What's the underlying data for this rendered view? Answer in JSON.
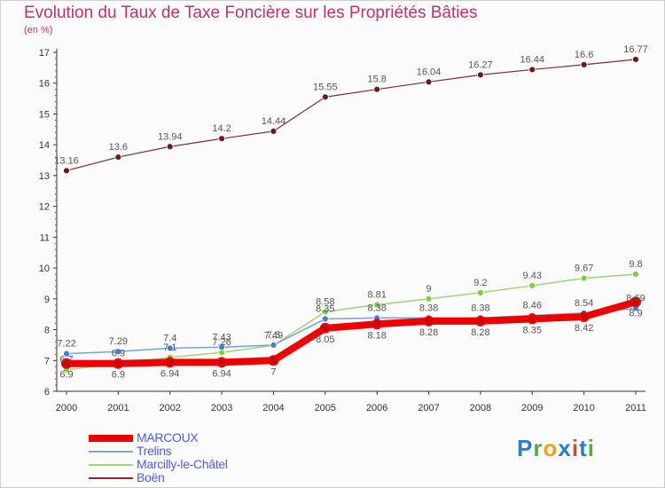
{
  "title": "Evolution du Taux de Taxe Foncière sur les Propriétés Bâties",
  "unit_label": "(en %)",
  "logo_text": "Proxiti",
  "chart_data": {
    "type": "line",
    "title": "Evolution du Taux de Taxe Foncière sur les Propriétés Bâties",
    "ylabel": "(en %)",
    "xlabel": "",
    "x": [
      2000,
      2001,
      2002,
      2003,
      2004,
      2005,
      2006,
      2007,
      2008,
      2009,
      2010,
      2011
    ],
    "ylim": [
      6,
      17
    ],
    "yticks": [
      6,
      7,
      8,
      9,
      10,
      11,
      12,
      13,
      14,
      15,
      16,
      17
    ],
    "series": [
      {
        "name": "MARCOUX",
        "color": "#ee0000",
        "marker": "#cc0000",
        "values": [
          6.9,
          6.9,
          6.94,
          6.94,
          7.0,
          8.05,
          8.18,
          8.28,
          8.28,
          8.35,
          8.42,
          8.9
        ]
      },
      {
        "name": "Trelins",
        "color": "#7ba7d1",
        "marker": "#3b82d6",
        "values": [
          7.22,
          7.29,
          7.4,
          7.43,
          7.5,
          8.35,
          8.38,
          8.38,
          8.38,
          8.46,
          8.54,
          8.69
        ]
      },
      {
        "name": "Marcilly-le-Châtel",
        "color": "#9fd880",
        "marker": "#7cd13a",
        "values": [
          6.7,
          6.9,
          7.1,
          7.26,
          7.49,
          8.58,
          8.81,
          9.0,
          9.2,
          9.43,
          9.67,
          9.8
        ]
      },
      {
        "name": "Boën",
        "color": "#7a3030",
        "marker": "#6b1a1a",
        "values": [
          13.16,
          13.6,
          13.94,
          14.2,
          14.44,
          15.55,
          15.8,
          16.04,
          16.27,
          16.44,
          16.6,
          16.77
        ]
      }
    ],
    "point_labels": {
      "MARCOUX": [
        "6.9",
        "6.9",
        "6.94",
        "6.94",
        "7",
        "8.05",
        "8.18",
        "8.28",
        "8.28",
        "8.35",
        "8.42",
        "8.9"
      ],
      "Trelins": [
        "7.22",
        "7.29",
        "7.4",
        "7.43",
        "7.5",
        "8.35",
        "8.38",
        "8.38",
        "8.38",
        "8.46",
        "8.54",
        "8.69"
      ],
      "Marcilly-le-Châtel": [
        "6.7",
        "6.9",
        "7.1",
        "7.26",
        "7.49",
        "8.58",
        "8.81",
        "9",
        "9.2",
        "9.43",
        "9.67",
        "9.8"
      ],
      "Boën": [
        "13.16",
        "13.6",
        "13.94",
        "14.2",
        "14.44",
        "15.55",
        "15.8",
        "16.04",
        "16.27",
        "16.44",
        "16.6",
        "16.77"
      ]
    },
    "legend_position": "bottom-left",
    "grid": false
  }
}
